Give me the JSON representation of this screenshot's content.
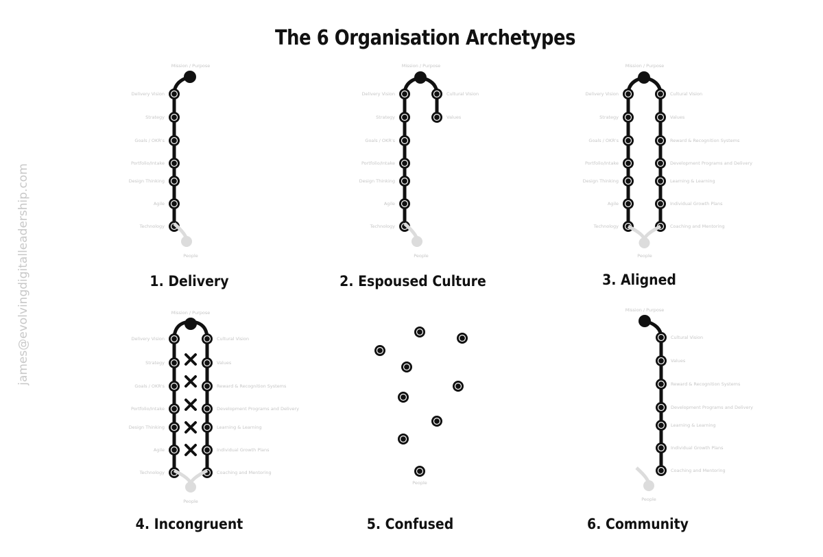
{
  "title": "The 6 Organisation Archetypes",
  "side_text": "james@evolvingdigitalleadership.com",
  "node_labels": {
    "mission": "Mission / Purpose",
    "people": "People",
    "left": [
      "Delivery Vision",
      "Strategy",
      "Goals / OKR's",
      "Portfolio/Intake",
      "Design Thinking",
      "Agile",
      "Technology"
    ],
    "right": [
      "Cultural Vision",
      "Values",
      "Reward & Recognition Systems",
      "Development Programs and Delivery",
      "Learning & Learning",
      "Individual Growth Plans",
      "Coaching and Mentoring"
    ],
    "right_alt": [
      "Cultural Vision",
      "Values",
      "Reward & Recognition Systems",
      "Development Programs and Delivery",
      "Learning & Learning",
      "Individual Growth Plans",
      "Coaching and Mentoring"
    ]
  },
  "panels": [
    {
      "number": "1.",
      "name": "Delivery",
      "label": "1. Delivery"
    },
    {
      "number": "2.",
      "name": "Espoused Culture",
      "label": "2. Espoused Culture"
    },
    {
      "number": "3.",
      "name": "Aligned",
      "label": "3. Aligned"
    },
    {
      "number": "4.",
      "name": "Incongruent",
      "label": "4. Incongruent"
    },
    {
      "number": "5.",
      "name": "Confused",
      "label": "5. Confused"
    },
    {
      "number": "6.",
      "name": "Community",
      "label": "6. Community"
    }
  ],
  "colors": {
    "chain": "#111111",
    "node_ring": "#ffffff",
    "faded": "#dcdcdc",
    "label": "#c6c6c6"
  },
  "icons": {
    "failed_link": "cross-icon",
    "node": "circle-node-icon",
    "mission": "mission-head-icon",
    "people": "people-tail-icon"
  }
}
